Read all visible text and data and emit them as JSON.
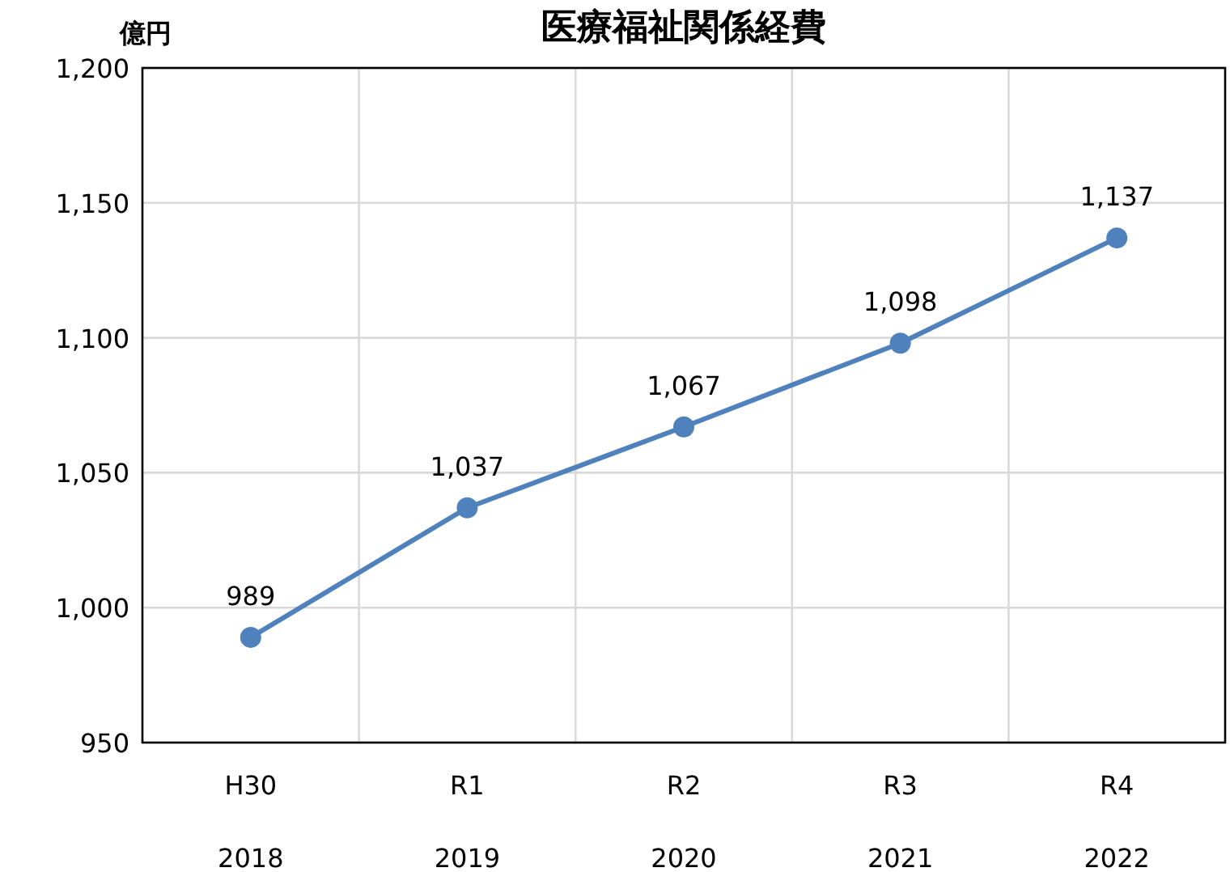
{
  "chart_data": {
    "type": "line",
    "title": "医療福祉関係経費",
    "ylabel": "億円",
    "categories": [
      "H30\n2018",
      "R1\n2019",
      "R2\n2020",
      "R3\n2021",
      "R4\n2022"
    ],
    "series": [
      {
        "color": "#4f81bd",
        "values": [
          989,
          1037,
          1067,
          1098,
          1137
        ],
        "value_labels": [
          "989",
          "1,037",
          "1,067",
          "1,098",
          "1,137"
        ]
      }
    ],
    "ylim": [
      950,
      1200
    ],
    "yticks": [
      {
        "value": 950,
        "label": "950"
      },
      {
        "value": 1000,
        "label": "1,000"
      },
      {
        "value": 1050,
        "label": "1,050"
      },
      {
        "value": 1100,
        "label": "1,100"
      },
      {
        "value": 1150,
        "label": "1,150"
      },
      {
        "value": 1200,
        "label": "1,200"
      }
    ],
    "grid": true,
    "marker": "circle",
    "line_style": "solid"
  }
}
